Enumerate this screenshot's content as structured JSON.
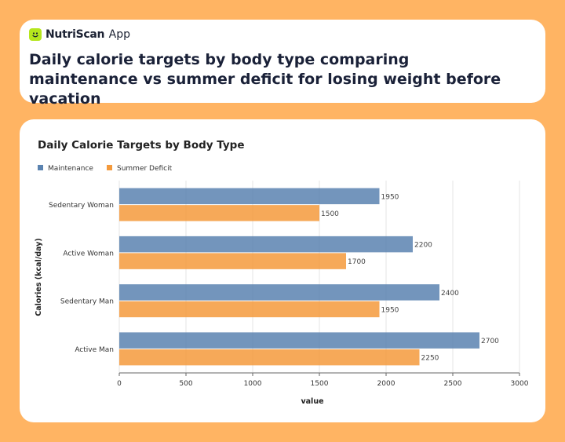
{
  "header": {
    "brand_name": "NutriScan",
    "brand_suffix": "App",
    "headline": "Daily calorie targets by body type comparing maintenance vs summer deficit for losing weight before vacation"
  },
  "colors": {
    "maintenance": "#5b83b0",
    "deficit": "#f49a3c",
    "brand_accent": "#b5e61d"
  },
  "icons": {
    "logo": "smiley-face-icon"
  },
  "chart_data": {
    "type": "bar",
    "orientation": "horizontal",
    "title": "Daily Calorie Targets by Body Type",
    "xlabel": "value",
    "ylabel": "Calories (kcal/day)",
    "xlim": [
      0,
      3000
    ],
    "xticks": [
      0,
      500,
      1000,
      1500,
      2000,
      2500,
      3000
    ],
    "categories": [
      "Sedentary Woman",
      "Active Woman",
      "Sedentary Man",
      "Active Man"
    ],
    "series": [
      {
        "name": "Maintenance",
        "values": [
          1950,
          2200,
          2400,
          2700
        ]
      },
      {
        "name": "Summer Deficit",
        "values": [
          1500,
          1700,
          1950,
          2250
        ]
      }
    ],
    "legend_position": "top-left",
    "grid": true,
    "data_labels": true
  }
}
